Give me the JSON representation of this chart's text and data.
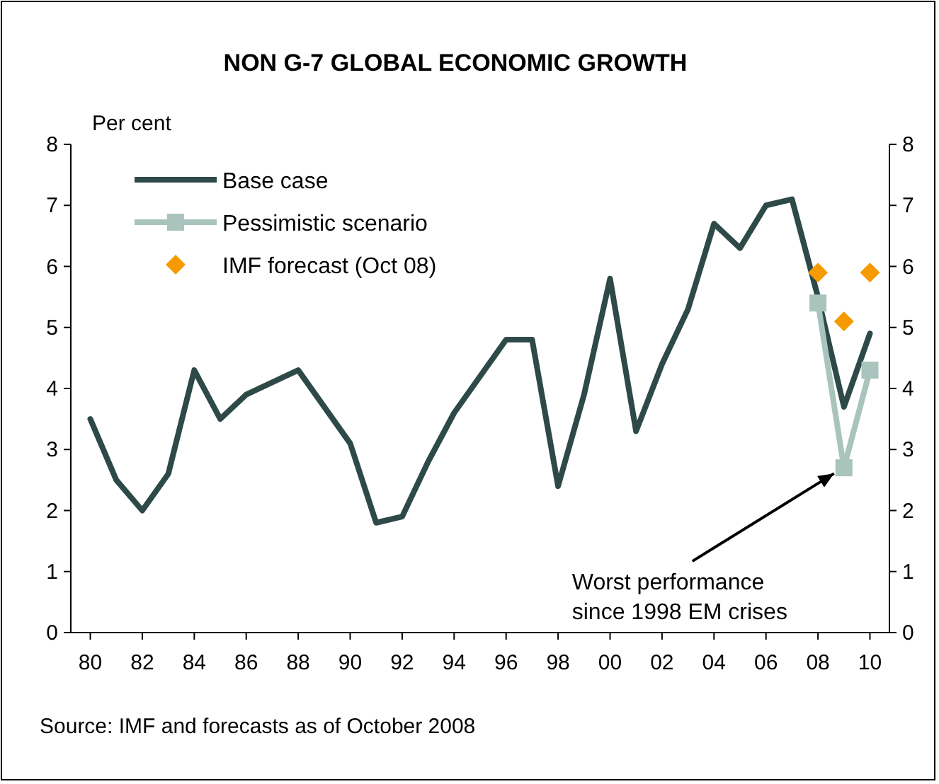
{
  "chart_data": {
    "type": "line",
    "title": "NON G-7 GLOBAL ECONOMIC GROWTH",
    "ylabel": "Per cent",
    "x": [
      1980,
      1981,
      1982,
      1983,
      1984,
      1985,
      1986,
      1987,
      1988,
      1989,
      1990,
      1991,
      1992,
      1993,
      1994,
      1995,
      1996,
      1997,
      1998,
      1999,
      2000,
      2001,
      2002,
      2003,
      2004,
      2005,
      2006,
      2007,
      2008,
      2009,
      2010
    ],
    "xlim": [
      1979.25,
      2010.75
    ],
    "xticks": [
      {
        "value": 1980,
        "label": "80"
      },
      {
        "value": 1982,
        "label": "82"
      },
      {
        "value": 1984,
        "label": "84"
      },
      {
        "value": 1986,
        "label": "86"
      },
      {
        "value": 1988,
        "label": "88"
      },
      {
        "value": 1990,
        "label": "90"
      },
      {
        "value": 1992,
        "label": "92"
      },
      {
        "value": 1994,
        "label": "94"
      },
      {
        "value": 1996,
        "label": "96"
      },
      {
        "value": 1998,
        "label": "98"
      },
      {
        "value": 2000,
        "label": "00"
      },
      {
        "value": 2002,
        "label": "02"
      },
      {
        "value": 2004,
        "label": "04"
      },
      {
        "value": 2006,
        "label": "06"
      },
      {
        "value": 2008,
        "label": "08"
      },
      {
        "value": 2010,
        "label": "10"
      }
    ],
    "ylim": [
      0,
      8
    ],
    "yticks": [
      0,
      1,
      2,
      3,
      4,
      5,
      6,
      7,
      8
    ],
    "y2lim": [
      0,
      8
    ],
    "y2ticks": [
      0,
      1,
      2,
      3,
      4,
      5,
      6,
      7,
      8
    ],
    "grid": false,
    "legend": "top left",
    "series": [
      {
        "name": "Base case",
        "color": "#2d4a48",
        "marker": "none",
        "values": [
          3.5,
          2.5,
          2.0,
          2.6,
          4.3,
          3.5,
          3.9,
          4.1,
          4.3,
          3.7,
          3.1,
          1.8,
          1.9,
          2.8,
          3.6,
          4.2,
          4.8,
          4.8,
          2.4,
          3.9,
          5.8,
          3.3,
          4.4,
          5.3,
          6.7,
          6.3,
          7.0,
          7.1,
          5.5,
          3.7,
          4.9
        ]
      },
      {
        "name": "Pessimistic scenario",
        "color": "#a8c4bc",
        "marker": "square",
        "x": [
          2008,
          2009,
          2010
        ],
        "values": [
          5.4,
          2.7,
          4.3
        ]
      },
      {
        "name": "IMF forecast (Oct 08)",
        "type": "scatter",
        "color": "#f59a00",
        "marker": "diamond",
        "x": [
          2008,
          2009,
          2010
        ],
        "values": [
          5.9,
          5.1,
          5.9
        ]
      }
    ],
    "annotations": [
      {
        "text": "Worst performance since 1998 EM crises",
        "x": 2009,
        "y": 2.7
      },
      "Source: IMF and forecasts as of October 2008"
    ]
  }
}
